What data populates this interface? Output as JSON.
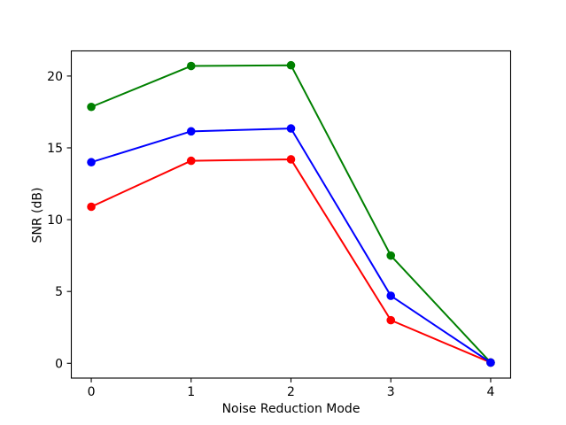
{
  "window": {
    "background": "#ffffff"
  },
  "chart_data": {
    "type": "line",
    "title": "",
    "xlabel": "Noise Reduction Mode",
    "ylabel": "SNR (dB)",
    "x": [
      0,
      1,
      2,
      3,
      4
    ],
    "xticks": [
      0,
      1,
      2,
      3,
      4
    ],
    "xtick_labels": [
      "0",
      "1",
      "2",
      "3",
      "4"
    ],
    "yticks": [
      0,
      5,
      10,
      15,
      20
    ],
    "ytick_labels": [
      "0",
      "5",
      "10",
      "15",
      "20"
    ],
    "xlim": [
      -0.2,
      4.2
    ],
    "ylim": [
      -1.03,
      21.75
    ],
    "grid": false,
    "legend": "none",
    "background": "#ffffff",
    "axis_color": "#000000",
    "text_color": "#000000",
    "marker": "circle",
    "series": [
      {
        "name": "red-series",
        "color": "#ff0000",
        "values": [
          10.9,
          14.1,
          14.2,
          3.0,
          0.05
        ]
      },
      {
        "name": "green-series",
        "color": "#008000",
        "values": [
          17.85,
          20.7,
          20.75,
          7.5,
          0.05
        ]
      },
      {
        "name": "blue-series",
        "color": "#0000ff",
        "values": [
          14.0,
          16.15,
          16.35,
          4.7,
          0.05
        ]
      }
    ]
  }
}
